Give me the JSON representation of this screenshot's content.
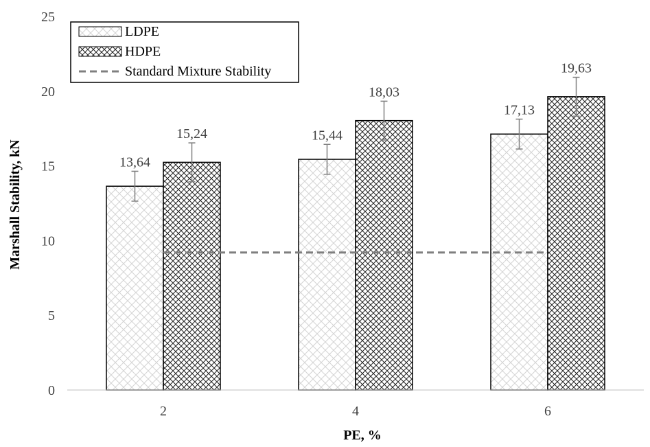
{
  "chart_data": {
    "type": "bar",
    "categories": [
      "2",
      "4",
      "6"
    ],
    "xlabel": "PE, %",
    "ylabel": "Marshall Stability, kN",
    "ylim": [
      0,
      25
    ],
    "yticks": [
      0,
      5,
      10,
      15,
      20,
      25
    ],
    "grid": false,
    "legend_position": "top-left",
    "series": [
      {
        "name": "LDPE",
        "values": [
          13.64,
          15.44,
          17.13
        ],
        "errors": [
          1.0,
          1.0,
          1.0
        ],
        "data_labels": [
          "13,64",
          "15,44",
          "17,13"
        ],
        "pattern": "light-crosshatch"
      },
      {
        "name": "HDPE",
        "values": [
          15.24,
          18.03,
          19.63
        ],
        "errors": [
          1.3,
          1.3,
          1.3
        ],
        "data_labels": [
          "15,24",
          "18,03",
          "19,63"
        ],
        "pattern": "dark-crosshatch"
      }
    ],
    "reference_line": {
      "name": "Standard Mixture Stability",
      "value": 9.2,
      "style": "dashed",
      "color": "#7f7f7f"
    }
  }
}
